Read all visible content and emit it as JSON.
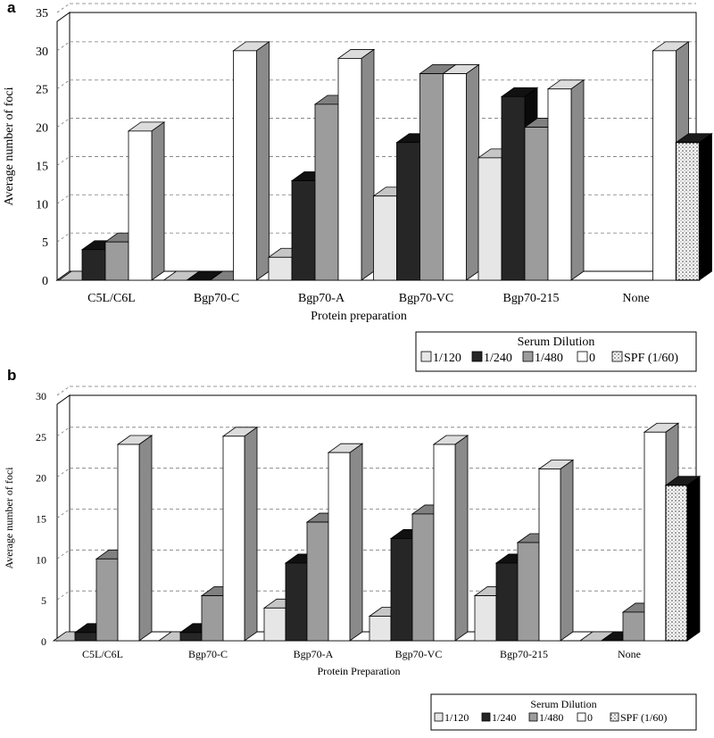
{
  "colors": {
    "s1": "#e6e6e6",
    "s2": "#262626",
    "s3": "#9c9c9c",
    "s4": "#ffffff",
    "s5": "#f4f4f4",
    "grid": "#7a7a7a",
    "stroke": "#000000"
  },
  "chart_data": [
    {
      "panel": "a",
      "type": "bar",
      "title": "",
      "xlabel": "Protein preparation",
      "ylabel": "Average number of foci",
      "ylim": [
        0,
        35
      ],
      "yticks": [
        0,
        5,
        10,
        15,
        20,
        25,
        30,
        35
      ],
      "grid": true,
      "legend_title": "Serum Dilution",
      "legend_position": "bottom-right",
      "categories": [
        "C5L/C6L",
        "Bgp70-C",
        "Bgp70-A",
        "Bgp70-VC",
        "Bgp70-215",
        "None"
      ],
      "series": [
        {
          "name": "1/120",
          "values": [
            0,
            0,
            3,
            11,
            16,
            null
          ]
        },
        {
          "name": "1/240",
          "values": [
            4,
            0,
            13,
            18,
            24,
            null
          ]
        },
        {
          "name": "1/480",
          "values": [
            5,
            0,
            23,
            27,
            20,
            null
          ]
        },
        {
          "name": "0",
          "values": [
            19.5,
            30,
            29,
            27,
            25,
            30
          ]
        },
        {
          "name": "SPF (1/60)",
          "values": [
            null,
            null,
            null,
            null,
            null,
            18
          ]
        }
      ]
    },
    {
      "panel": "b",
      "type": "bar",
      "title": "",
      "xlabel": "Protein Preparation",
      "ylabel": "Average number of foci",
      "ylim": [
        0,
        30
      ],
      "yticks": [
        0,
        5,
        10,
        15,
        20,
        25,
        30
      ],
      "grid": true,
      "legend_title": "Serum Dilution",
      "legend_position": "bottom-right",
      "categories": [
        "C5L/C6L",
        "Bgp70-C",
        "Bgp70-A",
        "Bgp70-VC",
        "Bgp70-215",
        "None"
      ],
      "series": [
        {
          "name": "1/120",
          "values": [
            0,
            0,
            4,
            3,
            5.5,
            0
          ]
        },
        {
          "name": "1/240",
          "values": [
            1,
            1,
            9.5,
            12.5,
            9.5,
            0
          ]
        },
        {
          "name": "1/480",
          "values": [
            10,
            5.5,
            14.5,
            15.5,
            12,
            3.5
          ]
        },
        {
          "name": "0",
          "values": [
            24,
            25,
            23,
            24,
            21,
            25.5
          ]
        },
        {
          "name": "SPF (1/60)",
          "values": [
            null,
            null,
            null,
            null,
            null,
            19
          ]
        }
      ]
    }
  ]
}
